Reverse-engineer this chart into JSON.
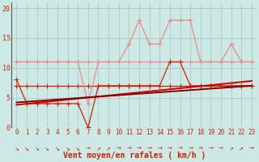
{
  "bg_color": "#cce9e5",
  "grid_color": "#b0c8c4",
  "xlabel": "Vent moyen/en rafales ( km/h )",
  "xlabel_color": "#cc2200",
  "tick_color": "#cc2200",
  "x_hours": [
    0,
    1,
    2,
    3,
    4,
    5,
    6,
    7,
    8,
    9,
    10,
    11,
    12,
    13,
    14,
    15,
    16,
    17,
    18,
    19,
    20,
    21,
    22,
    23
  ],
  "y_gust": [
    11,
    11,
    11,
    11,
    11,
    11,
    11,
    4,
    11,
    11,
    11,
    14,
    18,
    14,
    14,
    18,
    18,
    18,
    11,
    11,
    11,
    14,
    11,
    11
  ],
  "y_mean": [
    8,
    4,
    4,
    4,
    4,
    4,
    4,
    0,
    7,
    7,
    7,
    7,
    7,
    7,
    7,
    11,
    11,
    7,
    7,
    7,
    7,
    7,
    7,
    7
  ],
  "y_gust_flat": [
    11,
    11,
    11,
    11,
    11,
    11,
    11,
    11,
    11,
    11,
    11,
    11,
    11,
    11,
    11,
    11,
    11,
    11,
    11,
    11,
    11,
    11,
    11,
    11
  ],
  "y_mean_flat": [
    7,
    7,
    7,
    7,
    7,
    7,
    7,
    7,
    7,
    7,
    7,
    7,
    7,
    7,
    7,
    7,
    7,
    7,
    7,
    7,
    7,
    7,
    7,
    7
  ],
  "trend1_x": [
    0,
    23
  ],
  "trend1_y": [
    3.8,
    7.8
  ],
  "trend2_x": [
    0,
    23
  ],
  "trend2_y": [
    4.2,
    7.0
  ],
  "color_gust": "#f08888",
  "color_mean": "#cc2200",
  "color_flat_gust": "#f08888",
  "color_flat_mean": "#cc2200",
  "color_trend1": "#cc0000",
  "color_trend2": "#880000",
  "ylim": [
    0,
    21
  ],
  "yticks": [
    0,
    5,
    10,
    15,
    20
  ],
  "xlim": [
    -0.5,
    23.5
  ],
  "wind_dirs_angle": [
    225,
    225,
    225,
    225,
    225,
    225,
    225,
    270,
    315,
    315,
    270,
    270,
    270,
    270,
    270,
    270,
    270,
    270,
    270,
    270,
    270,
    315,
    315,
    270
  ],
  "marker": "+",
  "markersize": 4,
  "linewidth": 0.9,
  "tick_fontsize": 5.5,
  "label_fontsize": 7.0
}
